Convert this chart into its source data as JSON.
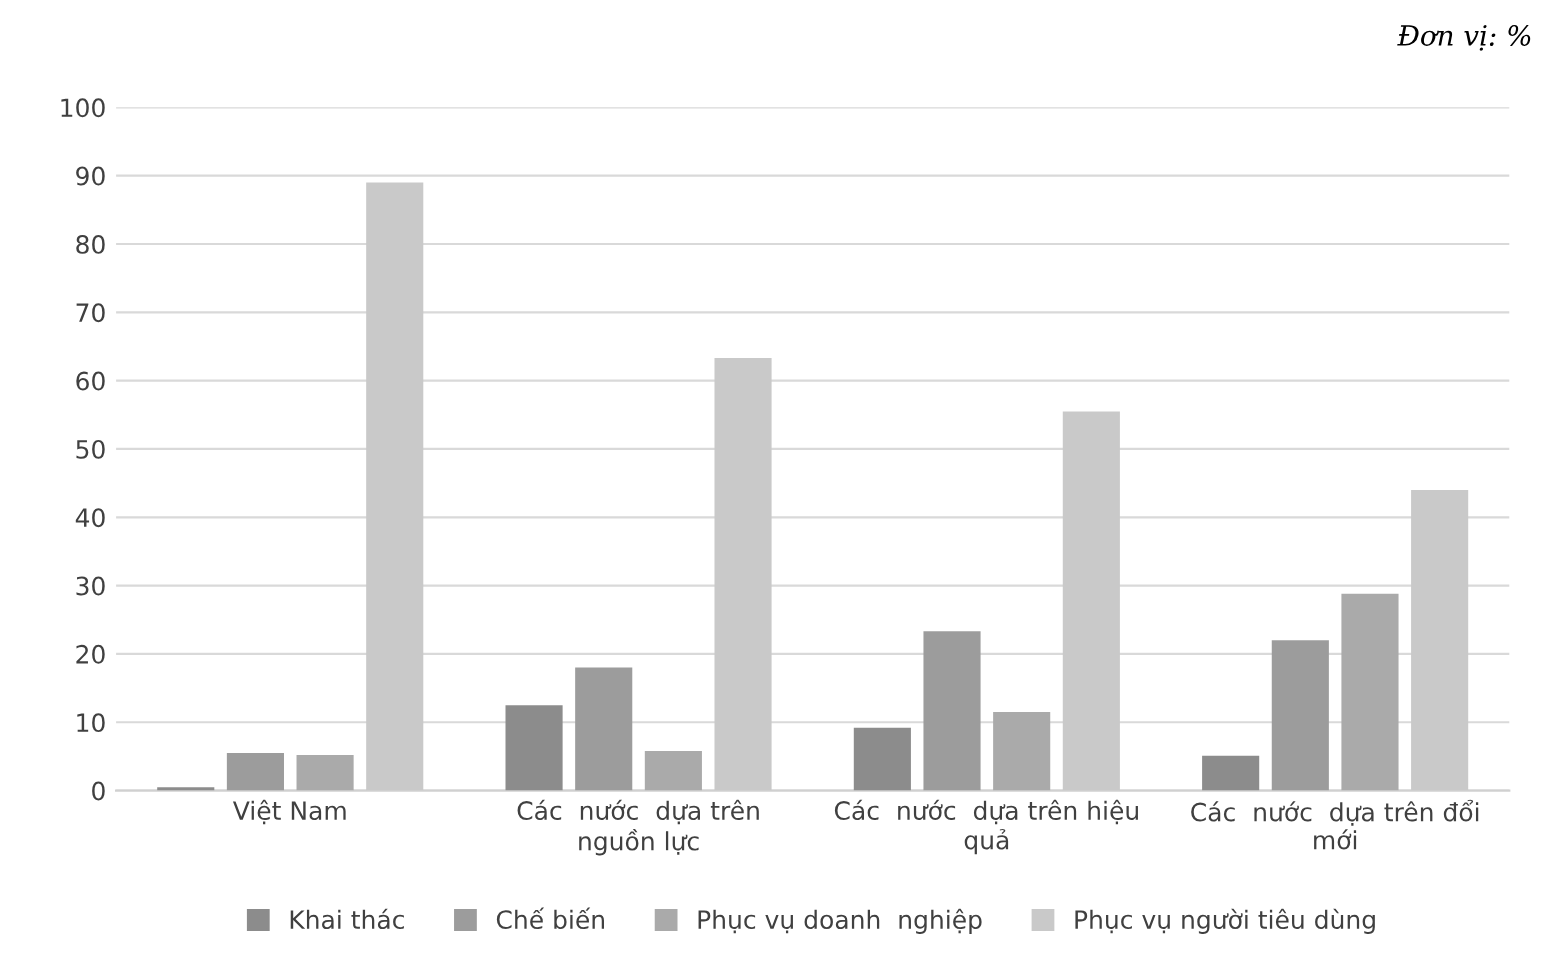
{
  "chart_data": {
    "type": "bar",
    "categories": [
      "Việt Nam",
      "Các  nước  dựa trên\nnguồn lực",
      "Các  nước  dựa trên hiệu\nquả",
      "Các  nước  dựa trên đổi\nmới"
    ],
    "series": [
      {
        "name": "Khai thác",
        "color": "#8c8c8c",
        "values": [
          0.5,
          12.5,
          9.2,
          5.1
        ]
      },
      {
        "name": "Chế biến",
        "color": "#9c9c9c",
        "values": [
          5.5,
          18,
          23.3,
          22
        ]
      },
      {
        "name": "Phục vụ doanh  nghiệp",
        "color": "#aaaaaa",
        "values": [
          5.2,
          5.8,
          11.5,
          28.8
        ]
      },
      {
        "name": "Phục vụ người tiêu dùng",
        "color": "#c9c9c9",
        "values": [
          89,
          63.3,
          55.5,
          44
        ]
      }
    ],
    "ylim": [
      0,
      100
    ],
    "yticks": [
      0,
      10,
      20,
      30,
      40,
      50,
      60,
      70,
      80,
      90,
      100
    ],
    "grid": "y",
    "legend": "bottom",
    "annotations": [
      "Đơn vị: %"
    ]
  }
}
